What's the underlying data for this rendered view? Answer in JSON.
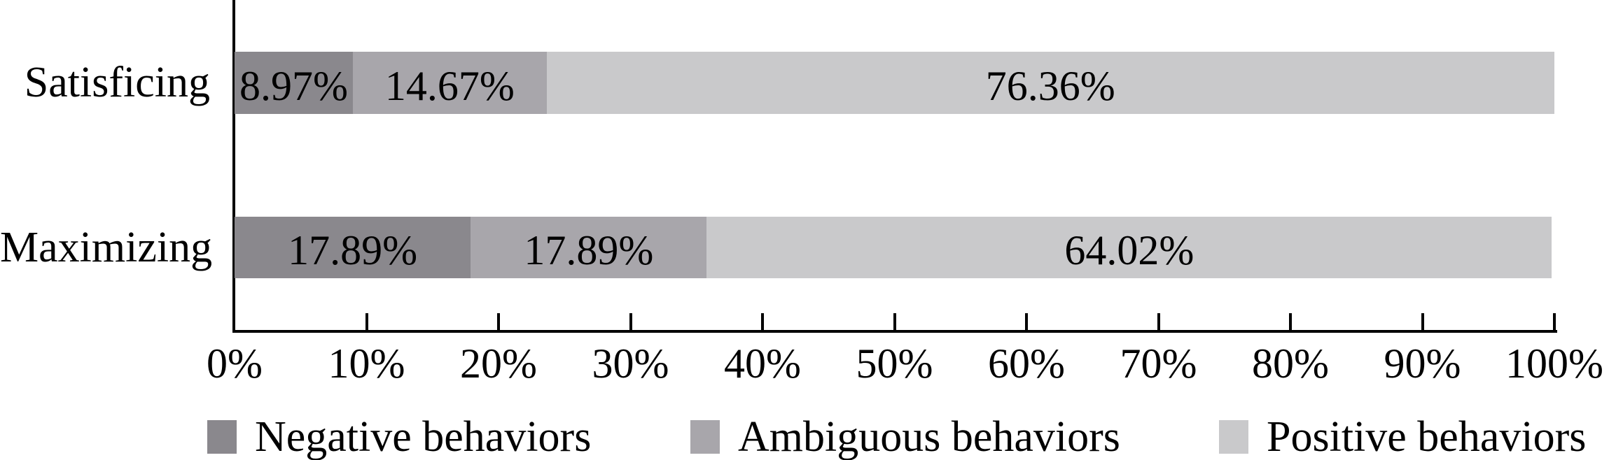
{
  "colors": {
    "negative": "#8a888d",
    "ambiguous": "#a8a6ab",
    "positive": "#c9c9cb",
    "axis": "#000000",
    "text": "#000000",
    "background": "#ffffff"
  },
  "chart_data": {
    "type": "bar",
    "orientation": "horizontal",
    "stacked": true,
    "title": "",
    "xlabel": "",
    "ylabel": "",
    "grid": false,
    "categories": [
      "Satisficing",
      "Maximizing"
    ],
    "series": [
      {
        "name": "Negative behaviors",
        "color_key": "negative",
        "values": [
          8.97,
          17.89
        ],
        "labels": [
          "8.97%",
          "17.89%"
        ]
      },
      {
        "name": "Ambiguous behaviors",
        "color_key": "ambiguous",
        "values": [
          14.67,
          17.89
        ],
        "labels": [
          "14.67%",
          "17.89%"
        ]
      },
      {
        "name": "Positive behaviors",
        "color_key": "positive",
        "values": [
          76.36,
          64.02
        ],
        "labels": [
          "76.36%",
          "64.02%"
        ]
      }
    ],
    "x_axis": {
      "min": 0,
      "max": 100,
      "tick_step": 10,
      "tick_labels": [
        "0%",
        "10%",
        "20%",
        "30%",
        "40%",
        "50%",
        "60%",
        "70%",
        "80%",
        "90%",
        "100%"
      ]
    },
    "legend": {
      "position": "bottom",
      "entries": [
        "Negative behaviors",
        "Ambiguous behaviors",
        "Positive behaviors"
      ]
    }
  }
}
